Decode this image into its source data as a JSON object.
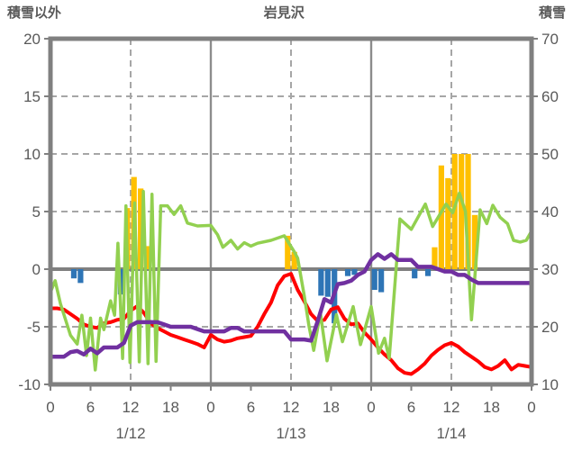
{
  "header": {
    "left_axis_title": "積雪以外",
    "title": "岩見沢",
    "right_axis_title": "積雪"
  },
  "chart_data": {
    "type": "bar+line combo, dual y-axis",
    "title": "岩見沢",
    "x_axis": {
      "unit": "hour",
      "range": [
        0,
        72
      ],
      "tick_hours": [
        0,
        6,
        12,
        18,
        24,
        30,
        36,
        42,
        48,
        54,
        60,
        66,
        72
      ],
      "tick_labels": [
        "0",
        "6",
        "12",
        "18",
        "0",
        "6",
        "12",
        "18",
        "0",
        "6",
        "12",
        "18",
        "0"
      ],
      "solid_day_lines_hours": [
        24,
        48
      ],
      "dashed_midday_lines_hours": [
        12,
        36,
        60
      ],
      "date_labels": [
        {
          "hour": 12,
          "label": "1/12"
        },
        {
          "hour": 36,
          "label": "1/13"
        },
        {
          "hour": 60,
          "label": "1/14"
        }
      ]
    },
    "y_left": {
      "title": "積雪以外",
      "min": -10,
      "max": 20,
      "tick_labels": [
        "20",
        "15",
        "10",
        "5",
        "0",
        "-5",
        "-10"
      ],
      "tick_values": [
        20,
        15,
        10,
        5,
        0,
        -5,
        -10
      ],
      "dashed_grid_values": [
        15,
        10,
        5,
        -5
      ],
      "zero_line_value": 0
    },
    "y_right": {
      "title": "積雪",
      "min": 10,
      "max": 70,
      "tick_labels": [
        "70",
        "60",
        "50",
        "40",
        "30",
        "20",
        "10"
      ],
      "tick_values": [
        70,
        60,
        50,
        40,
        30,
        20,
        10
      ]
    },
    "series": [
      {
        "name": "hourly-snow-depth-change-bars",
        "type": "bar",
        "axis": "left",
        "color_positive": "#FFC000",
        "color_negative": "#2E75B6",
        "points": [
          [
            4,
            -0.8
          ],
          [
            5,
            -1.2
          ],
          [
            11,
            -2.2
          ],
          [
            12,
            5.3
          ],
          [
            13,
            8.0
          ],
          [
            14,
            7.0
          ],
          [
            15,
            2.0
          ],
          [
            36,
            2.9
          ],
          [
            37,
            1.5
          ],
          [
            41,
            -2.3
          ],
          [
            42,
            -2.4
          ],
          [
            43,
            -4.7
          ],
          [
            45,
            -0.6
          ],
          [
            46,
            -0.5
          ],
          [
            49,
            -1.8
          ],
          [
            50,
            -2.0
          ],
          [
            55,
            -0.8
          ],
          [
            57,
            -0.6
          ],
          [
            58,
            1.9
          ],
          [
            59,
            9.0
          ],
          [
            60,
            7.9
          ],
          [
            61,
            10.0
          ],
          [
            62,
            10.0
          ],
          [
            63,
            10.0
          ],
          [
            64,
            4.7
          ]
        ]
      },
      {
        "name": "temperature-red-line",
        "type": "line",
        "axis": "left",
        "color": "#FF0000",
        "values_hourly": [
          -3.4,
          -3.4,
          -3.5,
          -3.9,
          -4.3,
          -4.8,
          -5.0,
          -5.1,
          -4.7,
          -4.6,
          -4.4,
          -4.3,
          -3.6,
          -3.2,
          -3.8,
          -4.7,
          -5.1,
          -5.4,
          -5.7,
          -5.9,
          -6.1,
          -6.3,
          -6.5,
          -6.8,
          -5.7,
          -6.1,
          -6.3,
          -6.2,
          -6.0,
          -5.9,
          -5.8,
          -5.0,
          -3.9,
          -2.9,
          -1.4,
          -0.6,
          -0.4,
          -1.8,
          -2.8,
          -3.9,
          -4.5,
          -4.4,
          -3.5,
          -3.3,
          -4.3,
          -4.8,
          -4.7,
          -5.5,
          -6.1,
          -6.8,
          -7.4,
          -7.9,
          -8.6,
          -9.0,
          -9.1,
          -8.7,
          -8.2,
          -7.5,
          -7.0,
          -6.6,
          -6.4,
          -6.7,
          -7.2,
          -7.6,
          -8.0,
          -8.5,
          -8.7,
          -8.4,
          -7.9,
          -8.7,
          -8.3,
          -8.4,
          -8.5
        ]
      },
      {
        "name": "snow-depth-green-line",
        "type": "line",
        "axis": "right",
        "color": "#92D050",
        "points": [
          [
            0,
            26
          ],
          [
            0.7,
            28
          ],
          [
            1.5,
            24
          ],
          [
            3,
            18.5
          ],
          [
            4,
            17
          ],
          [
            4.7,
            22
          ],
          [
            5.4,
            15
          ],
          [
            6,
            21.5
          ],
          [
            6.7,
            12.5
          ],
          [
            7.5,
            21.5
          ],
          [
            8,
            19.5
          ],
          [
            9,
            24.5
          ],
          [
            9.6,
            22
          ],
          [
            10.1,
            34.5
          ],
          [
            10.8,
            14.5
          ],
          [
            11.3,
            41
          ],
          [
            11.9,
            13.8
          ],
          [
            12.6,
            41.5
          ],
          [
            13.3,
            13.9
          ],
          [
            13.9,
            43.5
          ],
          [
            14.6,
            13.6
          ],
          [
            15.2,
            43
          ],
          [
            15.8,
            14
          ],
          [
            16.5,
            41
          ],
          [
            17.5,
            41
          ],
          [
            18.5,
            39.5
          ],
          [
            19.5,
            41
          ],
          [
            20.5,
            38
          ],
          [
            22,
            37.5
          ],
          [
            24,
            37.6
          ],
          [
            25,
            36
          ],
          [
            25.8,
            33.8
          ],
          [
            27,
            35
          ],
          [
            28,
            33.5
          ],
          [
            29,
            34.6
          ],
          [
            30,
            34
          ],
          [
            31,
            34.5
          ],
          [
            33,
            35
          ],
          [
            35,
            35.8
          ],
          [
            36.5,
            33
          ],
          [
            37,
            31.9
          ],
          [
            38,
            25.3
          ],
          [
            38.7,
            20.1
          ],
          [
            39.4,
            15.9
          ],
          [
            40.4,
            22.4
          ],
          [
            41.4,
            14.1
          ],
          [
            42.8,
            22.1
          ],
          [
            43.7,
            17.4
          ],
          [
            45.3,
            23.5
          ],
          [
            46.4,
            16.9
          ],
          [
            48,
            23.5
          ],
          [
            49.1,
            15.4
          ],
          [
            50,
            18
          ],
          [
            50.7,
            14.5
          ],
          [
            52.3,
            38.7
          ],
          [
            54,
            36.9
          ],
          [
            56.1,
            41.3
          ],
          [
            57.2,
            37.4
          ],
          [
            59.2,
            41.3
          ],
          [
            60.2,
            39.8
          ],
          [
            61.2,
            43.2
          ],
          [
            62.1,
            40
          ],
          [
            63,
            21.2
          ],
          [
            64.3,
            40.3
          ],
          [
            65.3,
            37.9
          ],
          [
            66.2,
            41.1
          ],
          [
            67.3,
            39
          ],
          [
            68.4,
            37.9
          ],
          [
            69.3,
            35
          ],
          [
            70.3,
            34.7
          ],
          [
            71.2,
            35
          ],
          [
            72,
            36.6
          ]
        ]
      },
      {
        "name": "temperature-purple-line",
        "type": "line",
        "axis": "left",
        "color": "#7030A0",
        "values_hourly": [
          -7.6,
          -7.6,
          -7.6,
          -7.2,
          -7.1,
          -7.4,
          -6.9,
          -7.3,
          -6.8,
          -6.8,
          -6.8,
          -6.4,
          -4.9,
          -4.6,
          -4.6,
          -4.6,
          -4.6,
          -4.8,
          -5.0,
          -5.0,
          -5.0,
          -5.0,
          -5.2,
          -5.4,
          -5.4,
          -5.4,
          -5.4,
          -5.1,
          -5.1,
          -5.4,
          -5.4,
          -5.4,
          -5.4,
          -5.4,
          -5.4,
          -5.4,
          -6.1,
          -6.1,
          -6.1,
          -6.2,
          -4.5,
          -2.6,
          -2.9,
          -1.3,
          -1.2,
          -1.0,
          -0.5,
          -0.2,
          0.8,
          1.3,
          0.9,
          1.3,
          0.8,
          0.8,
          0.8,
          0.2,
          0.2,
          0.2,
          0.0,
          -0.2,
          -0.2,
          -0.5,
          -0.5,
          -0.9,
          -1.2,
          -1.2,
          -1.2,
          -1.2,
          -1.2,
          -1.2,
          -1.2,
          -1.2,
          -1.2
        ]
      }
    ],
    "colors": {
      "frame": "#808080",
      "zero_line": "#808080",
      "day_line": "#8C8C8C",
      "dashed_grid": "#A6A6A6",
      "text": "#595959"
    },
    "legend": "none visible"
  }
}
